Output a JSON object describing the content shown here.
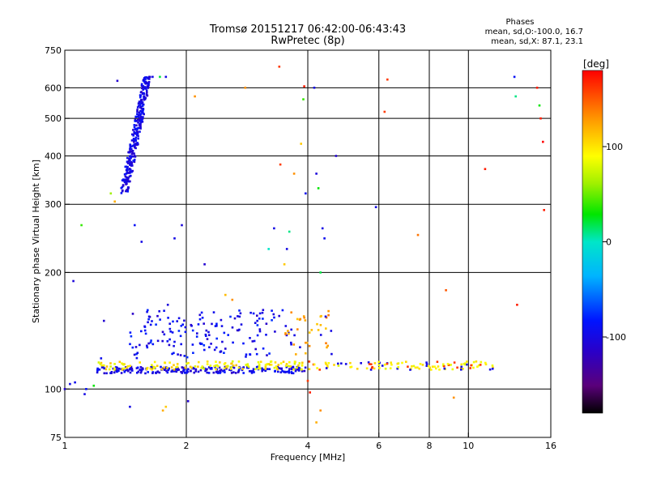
{
  "chart_data": {
    "type": "scatter",
    "title": "Tromsø 20151217 06:42:00-06:43:43",
    "subtitle": "RwPretec (8p)",
    "xlabel": "Frequency [MHz]",
    "ylabel": "Stationary phase Virtual Height [km]",
    "x_scale": "log",
    "y_scale": "log",
    "xlim": [
      1,
      16
    ],
    "ylim": [
      75,
      750
    ],
    "x_ticks": [
      1,
      2,
      4,
      6,
      8,
      10,
      16
    ],
    "x_tick_labels": [
      "1",
      "2",
      "4",
      "6",
      "8",
      "10",
      "16"
    ],
    "y_ticks": [
      75,
      100,
      200,
      300,
      400,
      500,
      600,
      750
    ],
    "y_tick_labels": [
      "75",
      "100",
      "200",
      "300",
      "400",
      "500",
      "600",
      "750"
    ],
    "grid_x": [
      2,
      4,
      6,
      8,
      10
    ],
    "grid_y": [
      100,
      200,
      300,
      400,
      500,
      600
    ],
    "stats_header": "Phases",
    "stats_lines": [
      "mean, sd,O:-100.0, 16.7",
      "mean, sd,X:  87.1, 23.1"
    ],
    "colorbar": {
      "label": "[deg]",
      "range": [
        -180,
        180
      ],
      "ticks": [
        100,
        0,
        -100
      ],
      "tick_labels": [
        "100",
        "0",
        "-100"
      ]
    },
    "points": [
      {
        "f": 1.0,
        "h": 100,
        "phase": -110
      },
      {
        "f": 1.03,
        "h": 103,
        "phase": -100
      },
      {
        "f": 1.05,
        "h": 190,
        "phase": -105
      },
      {
        "f": 1.06,
        "h": 104,
        "phase": -95
      },
      {
        "f": 1.1,
        "h": 265,
        "phase": 40
      },
      {
        "f": 1.12,
        "h": 97,
        "phase": -100
      },
      {
        "f": 1.13,
        "h": 100,
        "phase": -90
      },
      {
        "f": 1.18,
        "h": 102,
        "phase": 30
      },
      {
        "f": 1.23,
        "h": 120,
        "phase": -95
      },
      {
        "f": 1.25,
        "h": 150,
        "phase": -110
      },
      {
        "f": 1.3,
        "h": 320,
        "phase": 60
      },
      {
        "f": 1.33,
        "h": 305,
        "phase": 120
      },
      {
        "f": 1.35,
        "h": 625,
        "phase": -110
      },
      {
        "f": 1.4,
        "h": 345,
        "phase": -100
      },
      {
        "f": 1.42,
        "h": 360,
        "phase": -95
      },
      {
        "f": 1.45,
        "h": 390,
        "phase": -100
      },
      {
        "f": 1.47,
        "h": 410,
        "phase": -110
      },
      {
        "f": 1.49,
        "h": 265,
        "phase": -90
      },
      {
        "f": 1.5,
        "h": 430,
        "phase": -105
      },
      {
        "f": 1.52,
        "h": 450,
        "phase": -100
      },
      {
        "f": 1.54,
        "h": 480,
        "phase": -110
      },
      {
        "f": 1.56,
        "h": 520,
        "phase": -95
      },
      {
        "f": 1.58,
        "h": 560,
        "phase": -105
      },
      {
        "f": 1.6,
        "h": 600,
        "phase": -100
      },
      {
        "f": 1.62,
        "h": 640,
        "phase": -110
      },
      {
        "f": 1.55,
        "h": 240,
        "phase": -100
      },
      {
        "f": 1.45,
        "h": 90,
        "phase": -100
      },
      {
        "f": 1.65,
        "h": 640,
        "phase": -100
      },
      {
        "f": 1.72,
        "h": 640,
        "phase": 20
      },
      {
        "f": 1.78,
        "h": 640,
        "phase": -100
      },
      {
        "f": 1.75,
        "h": 88,
        "phase": 120
      },
      {
        "f": 1.78,
        "h": 90,
        "phase": 110
      },
      {
        "f": 1.8,
        "h": 165,
        "phase": -105
      },
      {
        "f": 1.87,
        "h": 245,
        "phase": -100
      },
      {
        "f": 1.95,
        "h": 265,
        "phase": -105
      },
      {
        "f": 2.02,
        "h": 93,
        "phase": -110
      },
      {
        "f": 2.1,
        "h": 570,
        "phase": 130
      },
      {
        "f": 2.22,
        "h": 210,
        "phase": -110
      },
      {
        "f": 2.5,
        "h": 175,
        "phase": 115
      },
      {
        "f": 2.6,
        "h": 170,
        "phase": 130
      },
      {
        "f": 2.8,
        "h": 600,
        "phase": 130
      },
      {
        "f": 3.0,
        "h": 150,
        "phase": -100
      },
      {
        "f": 3.1,
        "h": 160,
        "phase": -105
      },
      {
        "f": 3.2,
        "h": 230,
        "phase": 0
      },
      {
        "f": 3.3,
        "h": 260,
        "phase": -100
      },
      {
        "f": 3.4,
        "h": 680,
        "phase": 160
      },
      {
        "f": 3.42,
        "h": 380,
        "phase": 160
      },
      {
        "f": 3.5,
        "h": 210,
        "phase": 110
      },
      {
        "f": 3.55,
        "h": 230,
        "phase": -100
      },
      {
        "f": 3.6,
        "h": 255,
        "phase": 10
      },
      {
        "f": 3.7,
        "h": 360,
        "phase": 130
      },
      {
        "f": 3.85,
        "h": 430,
        "phase": 110
      },
      {
        "f": 3.9,
        "h": 560,
        "phase": 40
      },
      {
        "f": 3.92,
        "h": 605,
        "phase": 170
      },
      {
        "f": 3.95,
        "h": 320,
        "phase": -95
      },
      {
        "f": 4.0,
        "h": 105,
        "phase": 160
      },
      {
        "f": 4.05,
        "h": 98,
        "phase": 170
      },
      {
        "f": 4.15,
        "h": 600,
        "phase": -100
      },
      {
        "f": 4.2,
        "h": 360,
        "phase": -105
      },
      {
        "f": 4.25,
        "h": 330,
        "phase": 30
      },
      {
        "f": 4.3,
        "h": 200,
        "phase": 20
      },
      {
        "f": 4.35,
        "h": 260,
        "phase": -100
      },
      {
        "f": 4.4,
        "h": 245,
        "phase": -95
      },
      {
        "f": 4.2,
        "h": 82,
        "phase": 120
      },
      {
        "f": 4.3,
        "h": 88,
        "phase": 130
      },
      {
        "f": 4.7,
        "h": 400,
        "phase": -110
      },
      {
        "f": 5.9,
        "h": 295,
        "phase": -100
      },
      {
        "f": 6.2,
        "h": 520,
        "phase": 160
      },
      {
        "f": 6.3,
        "h": 630,
        "phase": 160
      },
      {
        "f": 7.5,
        "h": 250,
        "phase": 140
      },
      {
        "f": 8.8,
        "h": 180,
        "phase": 150
      },
      {
        "f": 9.2,
        "h": 95,
        "phase": 130
      },
      {
        "f": 11.0,
        "h": 370,
        "phase": 170
      },
      {
        "f": 13.0,
        "h": 640,
        "phase": -90
      },
      {
        "f": 13.1,
        "h": 570,
        "phase": 10
      },
      {
        "f": 13.2,
        "h": 165,
        "phase": 170
      },
      {
        "f": 14.8,
        "h": 600,
        "phase": 170
      },
      {
        "f": 15.0,
        "h": 540,
        "phase": 30
      },
      {
        "f": 15.1,
        "h": 500,
        "phase": 170
      },
      {
        "f": 15.3,
        "h": 435,
        "phase": 180
      },
      {
        "f": 15.4,
        "h": 290,
        "phase": 170
      }
    ]
  },
  "traces": {
    "o_main": {
      "f_start": 1.2,
      "f_end": 4.0,
      "h": 112,
      "phase": -100
    },
    "o_rise": [
      {
        "f": 1.5,
        "h_lo": 320,
        "h_hi": 640,
        "phase": -100
      }
    ],
    "x_main": {
      "f_start": 1.2,
      "f_end": 11.5,
      "h": 115,
      "phase": 95
    },
    "echo_cluster": {
      "f_start": 1.45,
      "f_end": 4.6,
      "h_lo": 120,
      "h_hi": 160,
      "phase": -95
    }
  }
}
